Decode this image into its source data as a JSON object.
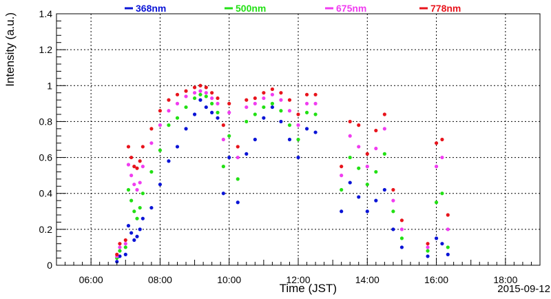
{
  "chart_data": {
    "type": "scatter",
    "xlabel": "Time (JST)",
    "ylabel": "Intensity (a.u.)",
    "date_label": "2015-09-12",
    "xlim": [
      "05:00",
      "19:00"
    ],
    "ylim": [
      0,
      1.4
    ],
    "grid": true,
    "legend_position": "top",
    "x_ticks": [
      "06:00",
      "08:00",
      "10:00",
      "12:00",
      "14:00",
      "16:00",
      "18:00"
    ],
    "y_ticks": [
      "0",
      "0.2",
      "0.4",
      "0.6",
      "0.8",
      "1",
      "1.2",
      "1.4"
    ],
    "series": [
      {
        "name": "368nm",
        "color": "#0a14d6",
        "x": [
          "06:45",
          "06:50",
          "07:00",
          "07:05",
          "07:10",
          "07:15",
          "07:20",
          "07:25",
          "07:30",
          "07:45",
          "08:00",
          "08:15",
          "08:30",
          "08:45",
          "09:00",
          "09:10",
          "09:20",
          "09:30",
          "09:40",
          "09:50",
          "10:00",
          "10:15",
          "10:30",
          "10:45",
          "11:00",
          "11:15",
          "11:30",
          "11:45",
          "12:00",
          "12:15",
          "12:30",
          "13:15",
          "13:30",
          "13:45",
          "14:00",
          "14:15",
          "14:30",
          "14:45",
          "15:00",
          "15:45",
          "16:00",
          "16:10",
          "16:20"
        ],
        "values": [
          0.02,
          0.05,
          0.06,
          0.22,
          0.18,
          0.14,
          0.16,
          0.2,
          0.26,
          0.32,
          0.45,
          0.58,
          0.66,
          0.76,
          0.84,
          0.92,
          0.88,
          0.85,
          0.82,
          0.4,
          0.6,
          0.35,
          0.62,
          0.7,
          0.82,
          0.88,
          0.8,
          0.7,
          0.6,
          0.76,
          0.74,
          0.3,
          0.46,
          0.38,
          0.3,
          0.36,
          0.42,
          0.2,
          0.1,
          0.05,
          0.15,
          0.12,
          0.06
        ]
      },
      {
        "name": "500nm",
        "color": "#22e014",
        "x": [
          "06:45",
          "06:50",
          "07:00",
          "07:05",
          "07:10",
          "07:15",
          "07:20",
          "07:25",
          "07:30",
          "07:45",
          "08:00",
          "08:15",
          "08:30",
          "08:45",
          "09:00",
          "09:10",
          "09:20",
          "09:30",
          "09:40",
          "09:50",
          "10:00",
          "10:15",
          "10:30",
          "10:45",
          "11:00",
          "11:15",
          "11:30",
          "11:45",
          "12:00",
          "12:15",
          "12:30",
          "13:15",
          "13:30",
          "13:45",
          "14:00",
          "14:15",
          "14:30",
          "14:45",
          "15:00",
          "15:45",
          "16:00",
          "16:10",
          "16:20"
        ],
        "values": [
          0.04,
          0.08,
          0.1,
          0.42,
          0.36,
          0.3,
          0.26,
          0.32,
          0.4,
          0.52,
          0.64,
          0.78,
          0.82,
          0.88,
          0.93,
          0.95,
          0.94,
          0.9,
          0.85,
          0.55,
          0.72,
          0.48,
          0.8,
          0.84,
          0.88,
          0.9,
          0.86,
          0.78,
          0.7,
          0.85,
          0.84,
          0.42,
          0.6,
          0.54,
          0.45,
          0.52,
          0.62,
          0.3,
          0.15,
          0.08,
          0.35,
          0.4,
          0.1
        ]
      },
      {
        "name": "675nm",
        "color": "#f03cf0",
        "x": [
          "06:45",
          "06:50",
          "07:00",
          "07:05",
          "07:10",
          "07:15",
          "07:20",
          "07:25",
          "07:30",
          "07:45",
          "08:00",
          "08:15",
          "08:30",
          "08:45",
          "09:00",
          "09:10",
          "09:20",
          "09:30",
          "09:40",
          "09:50",
          "10:00",
          "10:15",
          "10:30",
          "10:45",
          "11:00",
          "11:15",
          "11:30",
          "11:45",
          "12:00",
          "12:15",
          "12:30",
          "13:15",
          "13:30",
          "13:45",
          "14:00",
          "14:15",
          "14:30",
          "14:45",
          "15:00",
          "15:45",
          "16:00",
          "16:10",
          "16:20"
        ],
        "values": [
          0.05,
          0.1,
          0.12,
          0.56,
          0.5,
          0.45,
          0.42,
          0.46,
          0.55,
          0.68,
          0.78,
          0.86,
          0.9,
          0.94,
          0.96,
          0.97,
          0.96,
          0.93,
          0.9,
          0.7,
          0.85,
          0.6,
          0.88,
          0.9,
          0.93,
          0.95,
          0.92,
          0.86,
          0.78,
          0.9,
          0.9,
          0.5,
          0.72,
          0.66,
          0.55,
          0.65,
          0.76,
          0.36,
          0.2,
          0.1,
          0.55,
          0.6,
          0.2
        ]
      },
      {
        "name": "778nm",
        "color": "#e8141c",
        "x": [
          "06:45",
          "06:50",
          "07:00",
          "07:05",
          "07:10",
          "07:15",
          "07:20",
          "07:25",
          "07:30",
          "07:45",
          "08:00",
          "08:15",
          "08:30",
          "08:45",
          "09:00",
          "09:10",
          "09:20",
          "09:30",
          "09:40",
          "09:50",
          "10:00",
          "10:15",
          "10:30",
          "10:45",
          "11:00",
          "11:15",
          "11:30",
          "11:45",
          "12:00",
          "12:15",
          "12:30",
          "13:15",
          "13:30",
          "13:45",
          "14:00",
          "14:15",
          "14:30",
          "14:45",
          "15:00",
          "15:45",
          "16:00",
          "16:10",
          "16:20"
        ],
        "values": [
          0.06,
          0.12,
          0.14,
          0.66,
          0.6,
          0.55,
          0.54,
          0.58,
          0.66,
          0.76,
          0.86,
          0.92,
          0.95,
          0.97,
          0.99,
          1.0,
          0.99,
          0.96,
          0.93,
          0.78,
          0.9,
          0.66,
          0.92,
          0.93,
          0.96,
          0.98,
          0.96,
          0.92,
          0.84,
          0.95,
          0.95,
          0.55,
          0.8,
          0.78,
          0.62,
          0.75,
          0.84,
          0.42,
          0.25,
          0.12,
          0.68,
          0.7,
          0.28
        ]
      }
    ]
  }
}
